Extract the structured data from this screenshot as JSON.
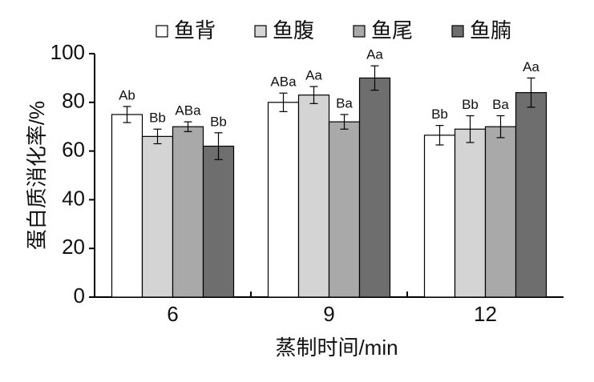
{
  "chart_data": {
    "type": "bar",
    "x_label": "蒸制时间/min",
    "y_label": "蛋白质消化率/%",
    "categories": [
      "6",
      "9",
      "12"
    ],
    "series": [
      {
        "name": "鱼背",
        "color": "#ffffff",
        "values": [
          75,
          80,
          66.5
        ],
        "errors": [
          3.3,
          3.8,
          4
        ],
        "labels": [
          "Ab",
          "ABa",
          "Bb"
        ]
      },
      {
        "name": "鱼腹",
        "color": "#d4d4d4",
        "values": [
          66,
          83,
          69
        ],
        "errors": [
          3,
          3.5,
          5.5
        ],
        "labels": [
          "Bb",
          "Aa",
          "Bb"
        ]
      },
      {
        "name": "鱼尾",
        "color": "#a9a9a9",
        "values": [
          70,
          72,
          70
        ],
        "errors": [
          2,
          3,
          4.5
        ],
        "labels": [
          "ABa",
          "Ba",
          "Ba"
        ]
      },
      {
        "name": "鱼腩",
        "color": "#6e6e6e",
        "values": [
          62,
          90,
          84
        ],
        "errors": [
          5.5,
          5,
          6
        ],
        "labels": [
          "Bb",
          "Aa",
          "Aa"
        ]
      }
    ],
    "ylim": [
      0,
      100
    ],
    "yticks": [
      0,
      20,
      40,
      60,
      80,
      100
    ]
  }
}
